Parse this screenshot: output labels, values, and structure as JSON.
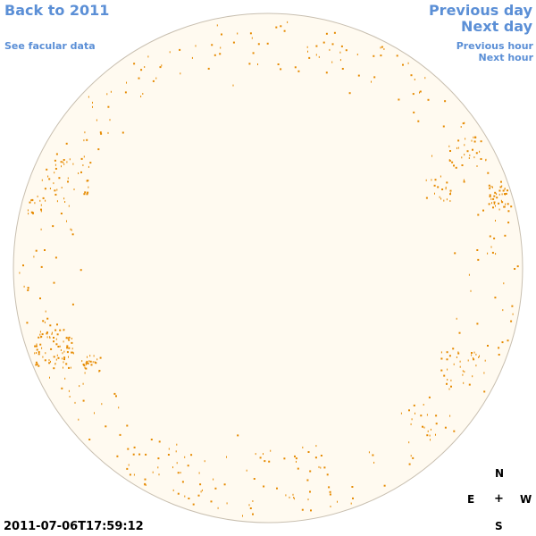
{
  "nav": {
    "back_label": "Back to 2011",
    "facular_label": "See facular data",
    "prev_day_label": "Previous day",
    "next_day_label": "Next day",
    "prev_hour_label": "Previous hour",
    "next_hour_label": "Next hour"
  },
  "compass": {
    "north": "N",
    "east": "E",
    "center": "+",
    "west": "W",
    "south": "S"
  },
  "timestamp": "2011-07-06T17:59:12",
  "colors": {
    "link": "#5b8fd6",
    "disk_fill": "#fffaf0",
    "disk_edge": "#c8bfb0",
    "facula": "#e68a00"
  }
}
